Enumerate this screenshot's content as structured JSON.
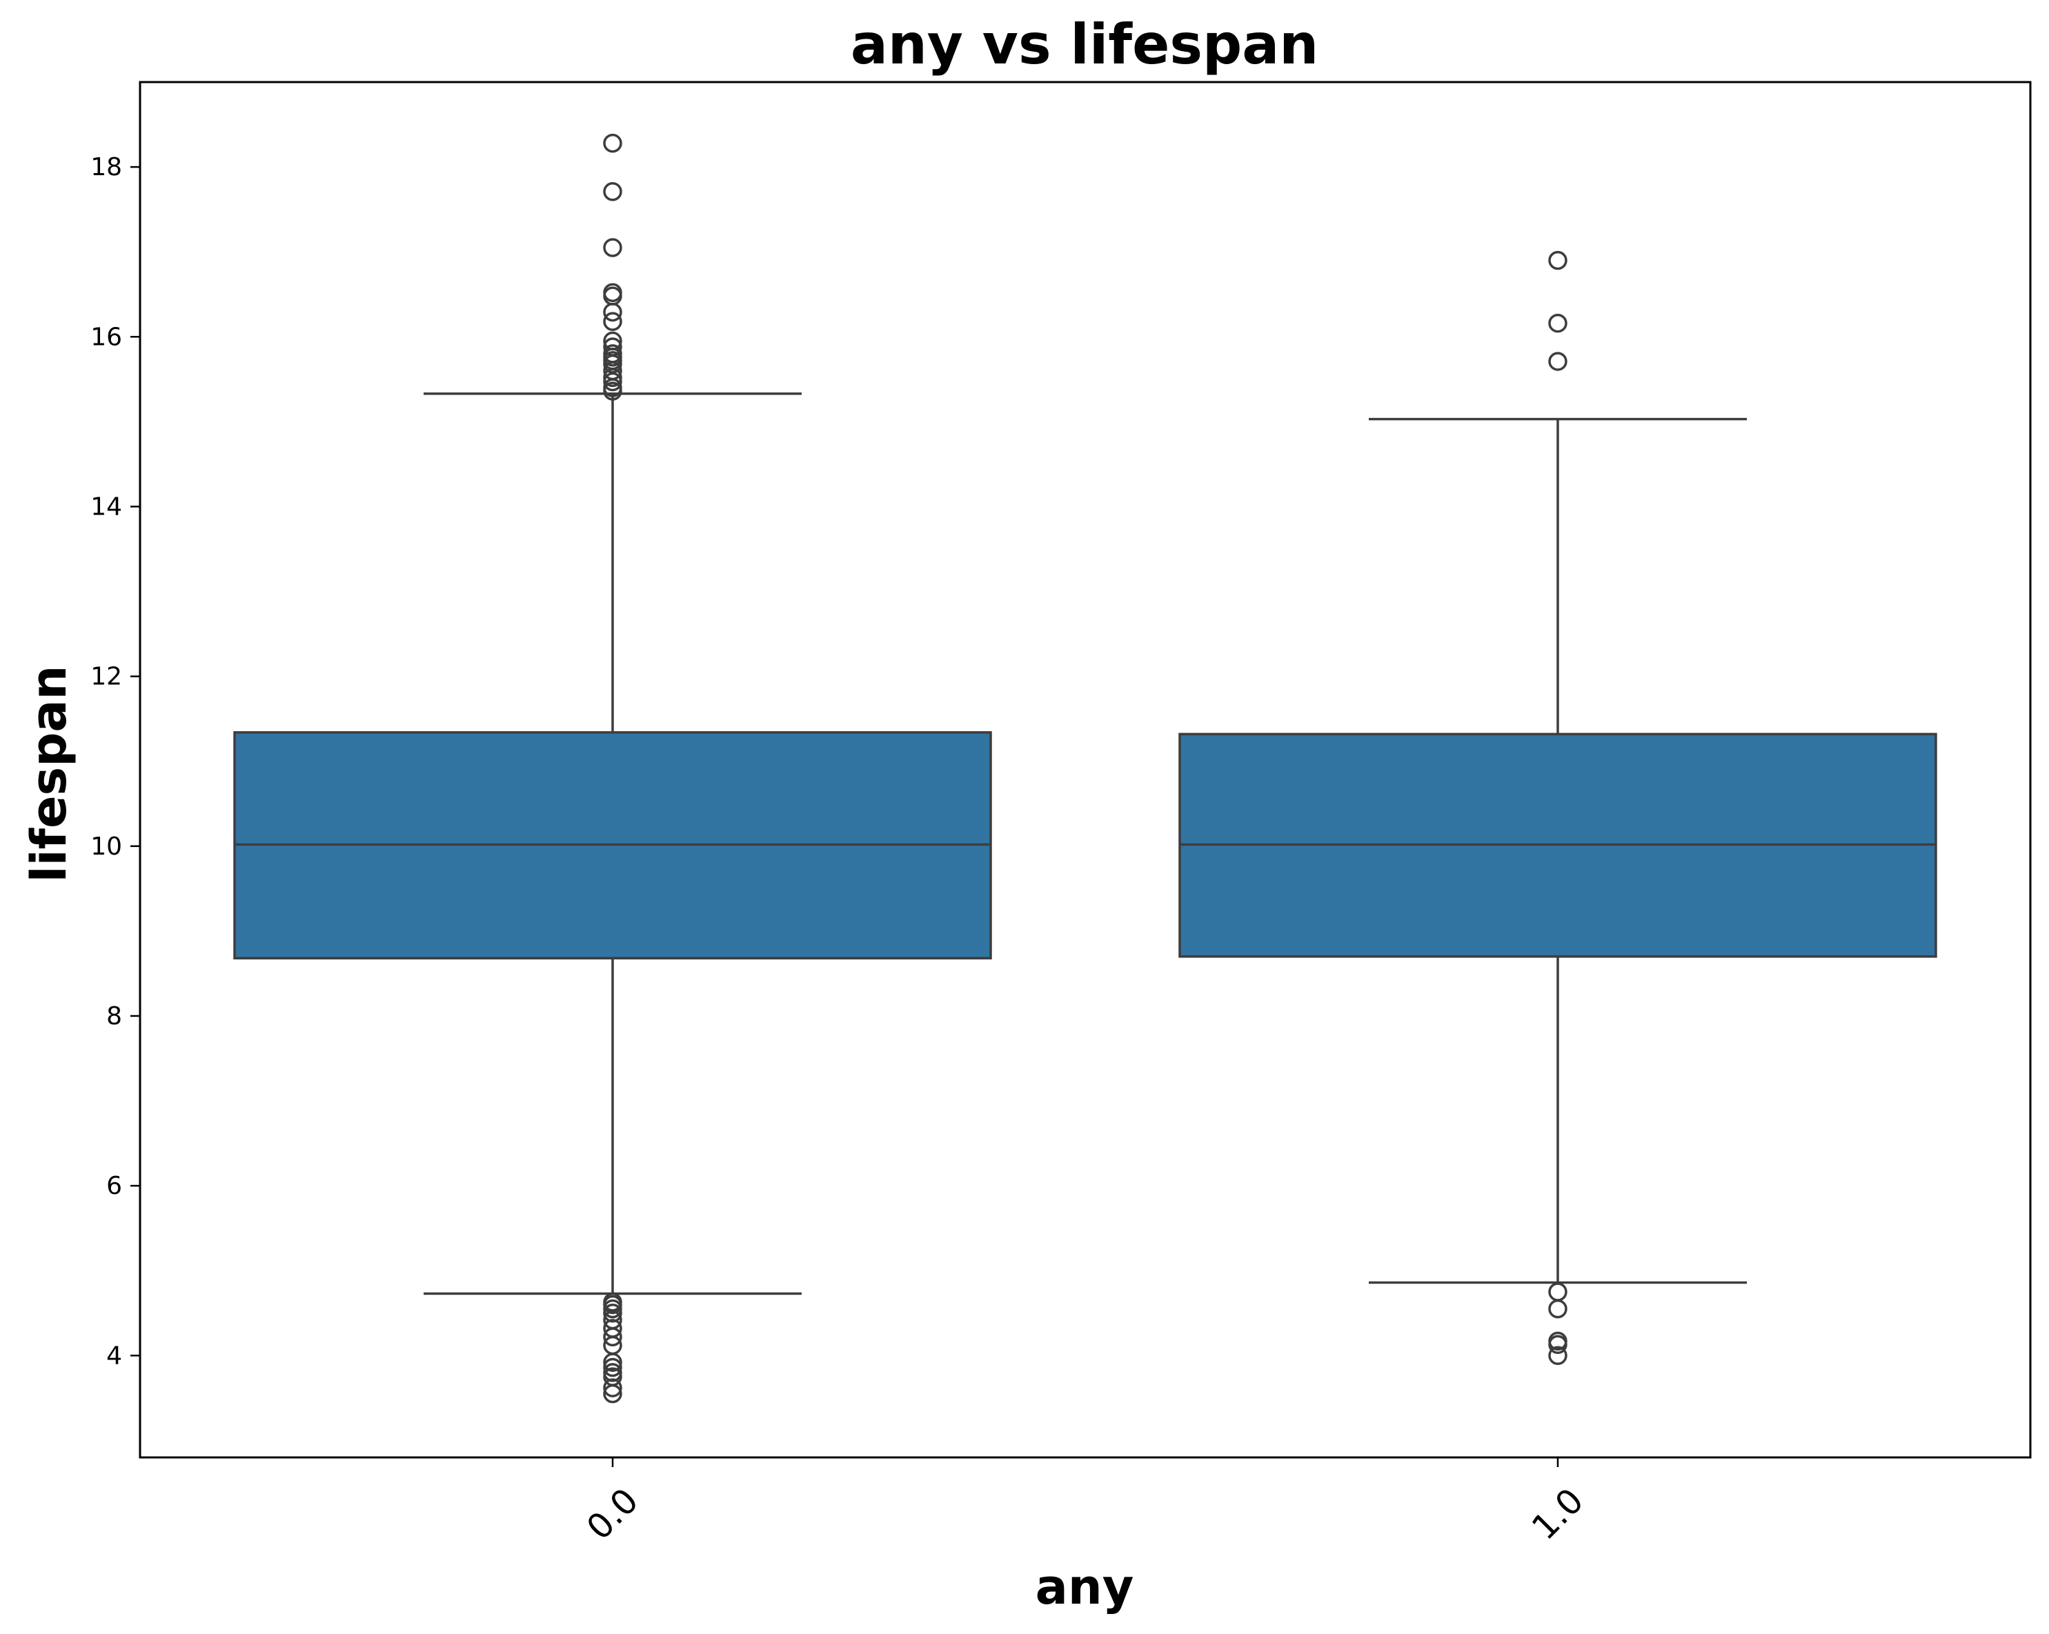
{
  "chart_data": {
    "type": "box",
    "title": "any vs lifespan",
    "xlabel": "any",
    "ylabel": "lifespan",
    "ylim": [
      2.8,
      19.0
    ],
    "yticks": [
      4,
      6,
      8,
      10,
      12,
      14,
      16,
      18
    ],
    "grid": false,
    "box_color": "#3274a1",
    "edge_color": "#3d3d3d",
    "boxes": [
      {
        "category": "0.0",
        "whisker_low": 4.73,
        "q1": 8.68,
        "median": 10.02,
        "q3": 11.34,
        "whisker_high": 15.33,
        "outliers": [
          18.28,
          17.71,
          17.05,
          16.52,
          16.48,
          16.29,
          16.18,
          15.95,
          15.88,
          15.8,
          15.76,
          15.72,
          15.68,
          15.6,
          15.52,
          15.47,
          15.4,
          15.36,
          4.63,
          4.6,
          4.55,
          4.5,
          4.42,
          4.32,
          4.22,
          4.12,
          3.92,
          3.86,
          3.8,
          3.75,
          3.62,
          3.55
        ]
      },
      {
        "category": "1.0",
        "whisker_low": 4.86,
        "q1": 8.7,
        "median": 10.02,
        "q3": 11.32,
        "whisker_high": 15.03,
        "outliers": [
          16.9,
          16.16,
          15.71,
          4.75,
          4.55,
          4.17,
          4.13,
          4.0
        ]
      }
    ]
  }
}
